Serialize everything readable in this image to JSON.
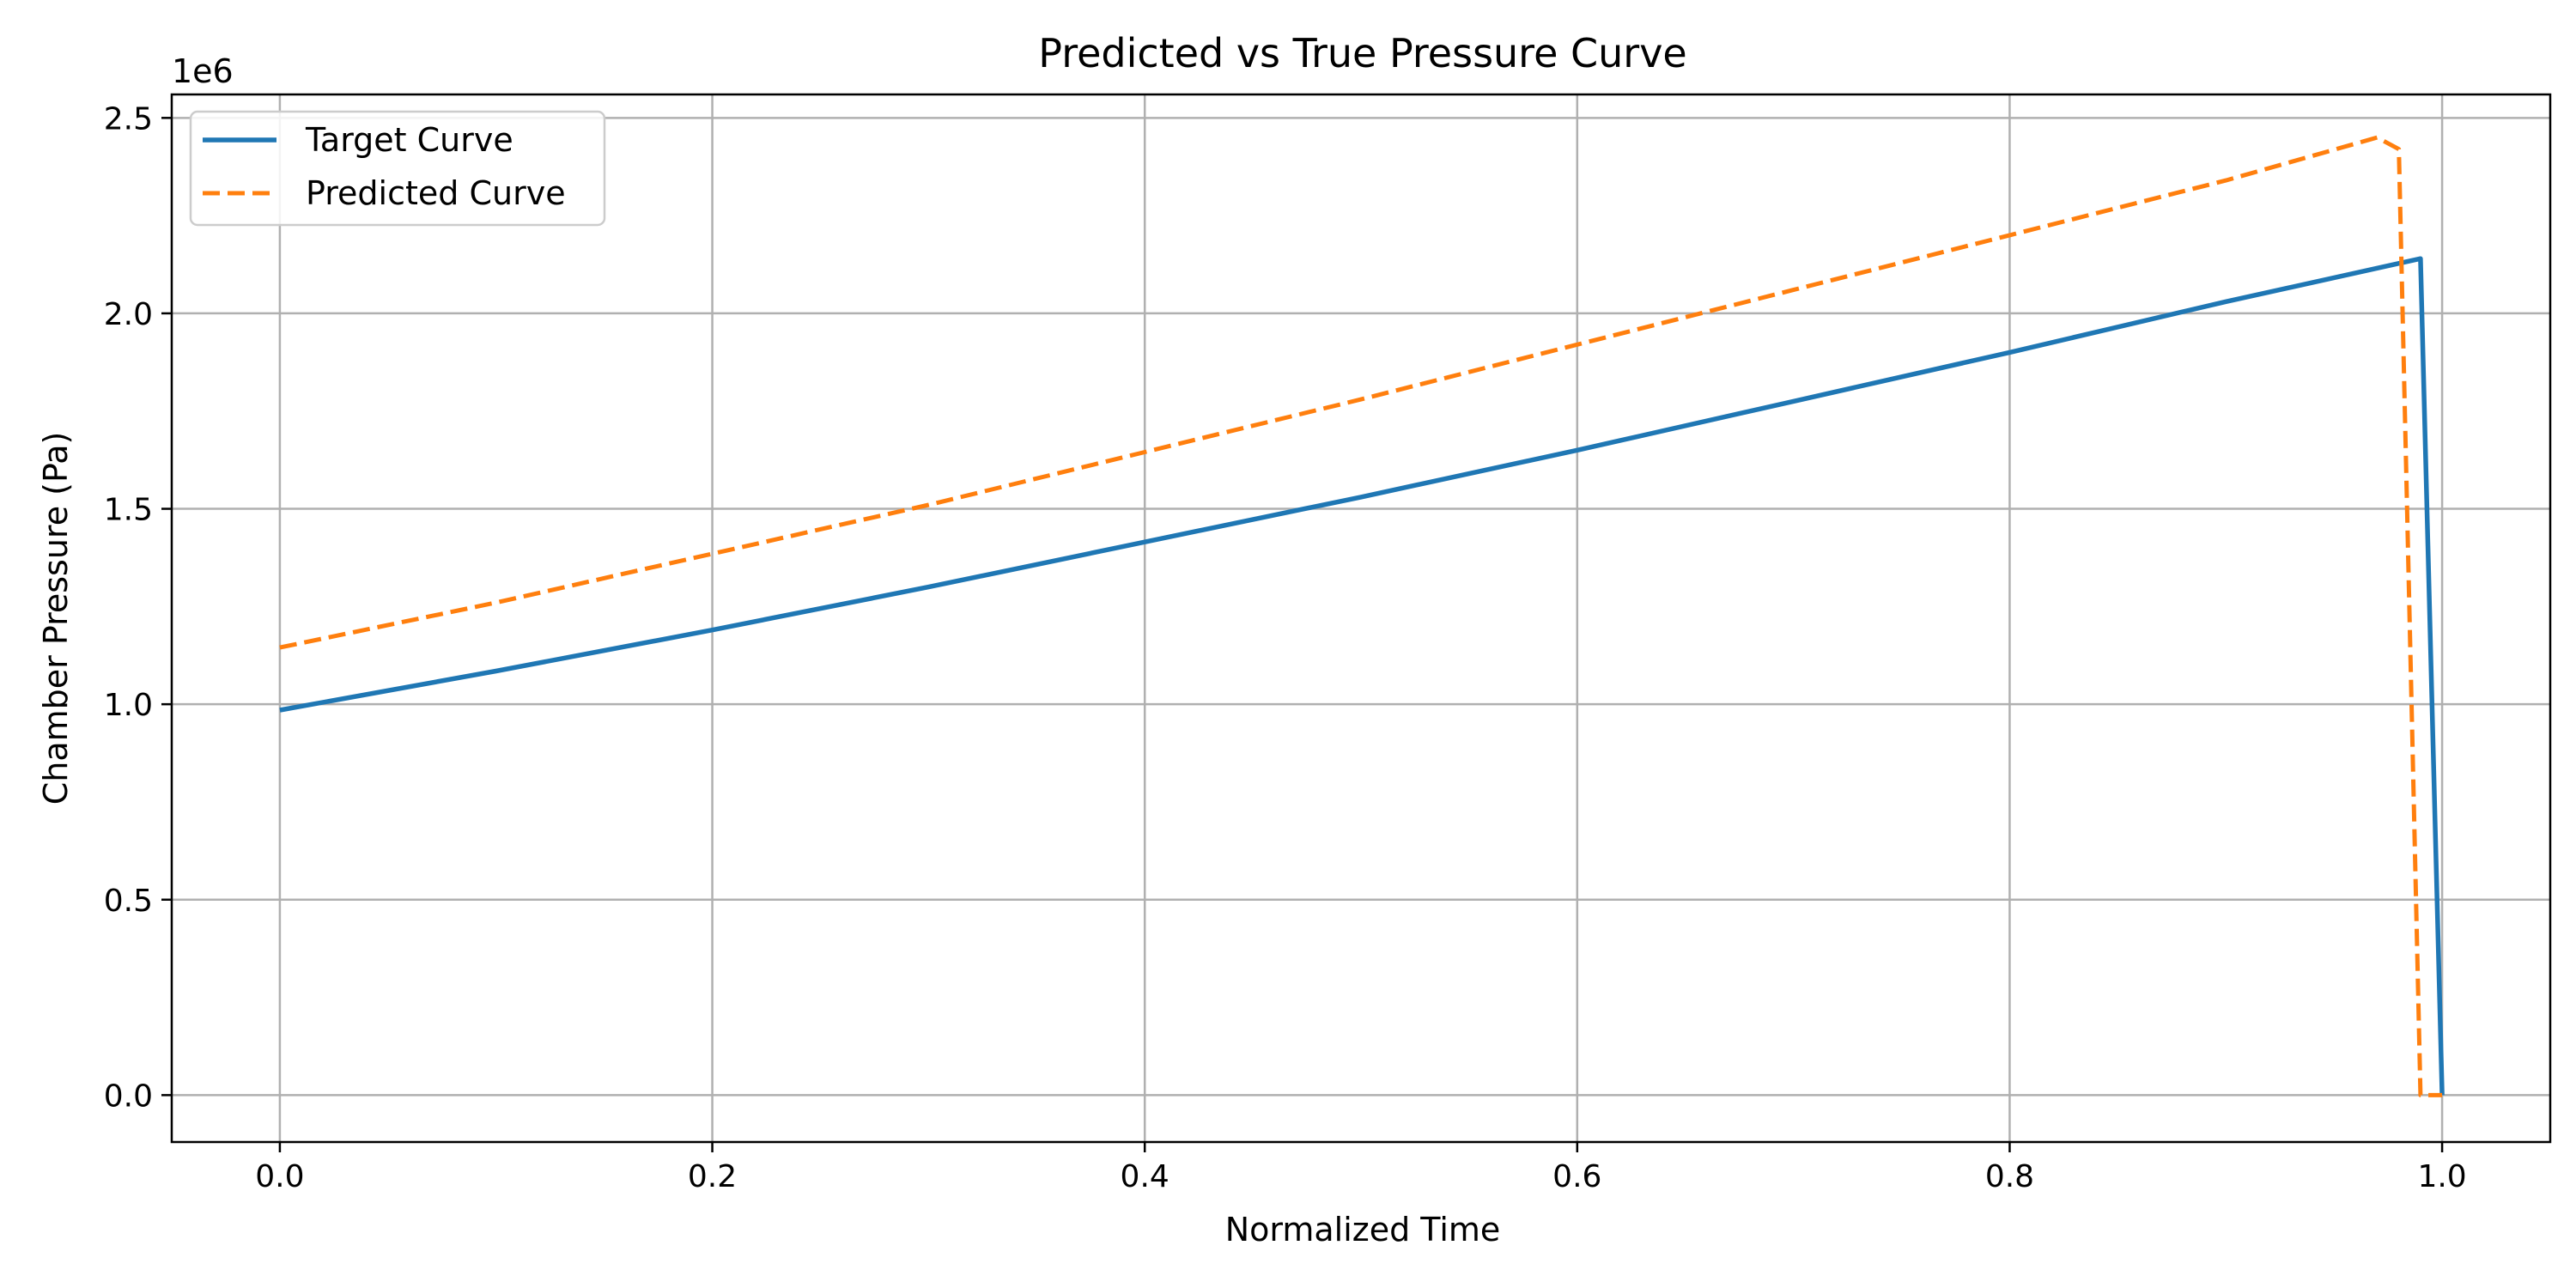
{
  "chart_data": {
    "type": "line",
    "title": "Predicted vs True Pressure Curve",
    "xlabel": "Normalized Time",
    "ylabel": "Chamber Pressure (Pa)",
    "y_offset_label": "1e6",
    "xlim": [
      -0.05,
      1.05
    ],
    "ylim": [
      -0.12,
      2.56
    ],
    "y_scale_note": "values in units of 1e6 Pa",
    "x_ticks": [
      0.0,
      0.2,
      0.4,
      0.6,
      0.8,
      1.0
    ],
    "x_tick_labels": [
      "0.0",
      "0.2",
      "0.4",
      "0.6",
      "0.8",
      "1.0"
    ],
    "y_ticks": [
      0.0,
      0.5,
      1.0,
      1.5,
      2.0,
      2.5
    ],
    "y_tick_labels": [
      "0.0",
      "0.5",
      "1.0",
      "1.5",
      "2.0",
      "2.5"
    ],
    "grid": true,
    "legend_position": "top-left",
    "series": [
      {
        "name": "Target Curve",
        "color": "#1f77b4",
        "style": "solid",
        "x": [
          0.0,
          0.1,
          0.2,
          0.3,
          0.4,
          0.5,
          0.6,
          0.7,
          0.8,
          0.9,
          0.99,
          1.0
        ],
        "y": [
          0.985,
          1.085,
          1.19,
          1.3,
          1.415,
          1.53,
          1.65,
          1.775,
          1.9,
          2.03,
          2.14,
          0.0
        ]
      },
      {
        "name": "Predicted Curve",
        "color": "#ff7f0e",
        "style": "dashed",
        "x": [
          0.0,
          0.1,
          0.2,
          0.3,
          0.4,
          0.5,
          0.6,
          0.7,
          0.8,
          0.9,
          0.97,
          0.98,
          0.99,
          1.0
        ],
        "y": [
          1.145,
          1.26,
          1.385,
          1.51,
          1.645,
          1.78,
          1.92,
          2.06,
          2.2,
          2.34,
          2.45,
          2.42,
          0.0,
          0.0
        ]
      }
    ]
  }
}
